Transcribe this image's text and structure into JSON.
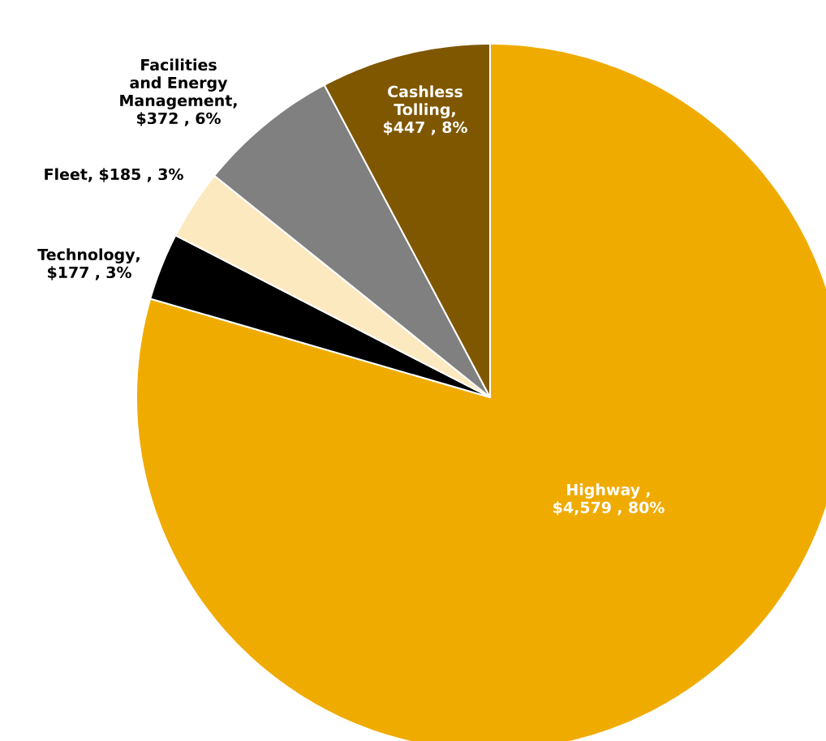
{
  "chart_data": {
    "type": "pie",
    "categories": [
      "Highway",
      "Technology",
      "Fleet",
      "Facilities and Energy Management",
      "Cashless Tolling"
    ],
    "values": [
      4579,
      177,
      185,
      372,
      447
    ],
    "value_labels": [
      " , $4,579 , 80%",
      ", $177 , 3%",
      ", $185 , 3%",
      ", $372 , 6%",
      ", $447 , 8%"
    ],
    "colors": [
      "#f0ab00",
      "#000000",
      "#fde9c0",
      "#808080",
      "#7f5700"
    ]
  }
}
